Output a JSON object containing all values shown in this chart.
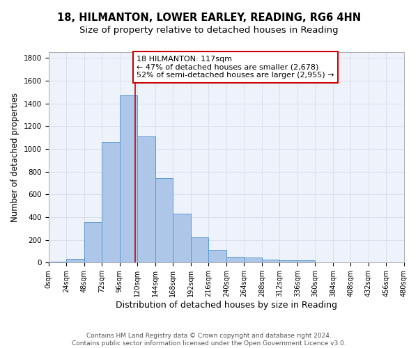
{
  "title_line1": "18, HILMANTON, LOWER EARLEY, READING, RG6 4HN",
  "title_line2": "Size of property relative to detached houses in Reading",
  "xlabel": "Distribution of detached houses by size in Reading",
  "ylabel": "Number of detached properties",
  "bar_left_edges": [
    0,
    24,
    48,
    72,
    96,
    120,
    144,
    168,
    192,
    216,
    240,
    264,
    288,
    312,
    336,
    360,
    384,
    408,
    432,
    456
  ],
  "bar_heights": [
    10,
    35,
    355,
    1060,
    1470,
    1110,
    745,
    430,
    225,
    110,
    50,
    45,
    30,
    20,
    20,
    5,
    5,
    5,
    2,
    5
  ],
  "bin_width": 24,
  "bar_color": "#aec6e8",
  "bar_edge_color": "#5b9bd5",
  "grid_color": "#d0d8e8",
  "background_color": "#ffffff",
  "plot_bg_color": "#eef2fa",
  "vline_x": 117,
  "vline_color": "#cc0000",
  "annotation_text": "18 HILMANTON: 117sqm\n← 47% of detached houses are smaller (2,678)\n52% of semi-detached houses are larger (2,955) →",
  "annotation_box_color": "#cc0000",
  "ylim": [
    0,
    1850
  ],
  "xlim": [
    0,
    480
  ],
  "xtick_labels": [
    "0sqm",
    "24sqm",
    "48sqm",
    "72sqm",
    "96sqm",
    "120sqm",
    "144sqm",
    "168sqm",
    "192sqm",
    "216sqm",
    "240sqm",
    "264sqm",
    "288sqm",
    "312sqm",
    "336sqm",
    "360sqm",
    "384sqm",
    "408sqm",
    "432sqm",
    "456sqm",
    "480sqm"
  ],
  "xtick_positions": [
    0,
    24,
    48,
    72,
    96,
    120,
    144,
    168,
    192,
    216,
    240,
    264,
    288,
    312,
    336,
    360,
    384,
    408,
    432,
    456,
    480
  ],
  "ytick_positions": [
    0,
    200,
    400,
    600,
    800,
    1000,
    1200,
    1400,
    1600,
    1800
  ],
  "footnote": "Contains HM Land Registry data © Crown copyright and database right 2024.\nContains public sector information licensed under the Open Government Licence v3.0.",
  "title_fontsize": 10.5,
  "subtitle_fontsize": 9.5,
  "axis_label_fontsize": 8.5,
  "tick_fontsize": 7,
  "annotation_fontsize": 8,
  "footnote_fontsize": 6.5
}
